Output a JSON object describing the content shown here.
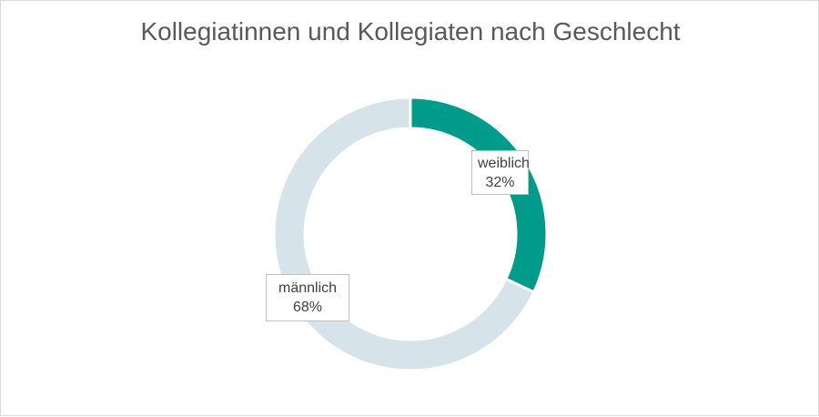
{
  "chart_data": {
    "type": "pie",
    "subtype": "donut",
    "title": "Kollegiatinnen und Kollegiaten nach Geschlecht",
    "slices": [
      {
        "label": "weiblich",
        "value": 32,
        "value_label": "32%",
        "color": "#009b8b"
      },
      {
        "label": "männlich",
        "value": 68,
        "value_label": "68%",
        "color": "#d6e3eb"
      }
    ],
    "legend": "none",
    "data_labels": "callout boxes showing category name and percentage"
  }
}
